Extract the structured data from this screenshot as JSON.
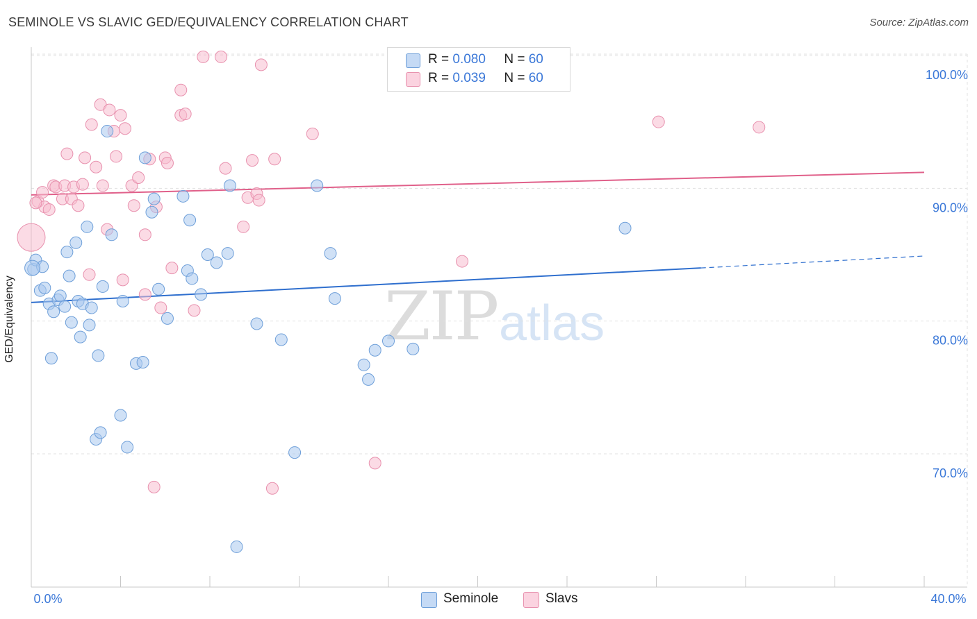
{
  "header": {
    "title": "SEMINOLE VS SLAVIC GED/EQUIVALENCY CORRELATION CHART",
    "source": "Source: ZipAtlas.com"
  },
  "watermark": {
    "zip": "ZIP",
    "atlas": "atlas"
  },
  "legend": {
    "rows": [
      {
        "r_label": "R =",
        "r_value": "0.080",
        "n_label": "N =",
        "n_value": "60"
      },
      {
        "r_label": "R =",
        "r_value": "0.039",
        "n_label": "N =",
        "n_value": "60"
      }
    ],
    "bottom": [
      {
        "label": "Seminole"
      },
      {
        "label": "Slavs"
      }
    ]
  },
  "colors": {
    "seminole_fill": "#a9c8ef",
    "seminole_stroke": "#6e9fd9",
    "seminole_line": "#2f6fce",
    "slavs_fill": "#f7bdd0",
    "slavs_stroke": "#e891ae",
    "slavs_line": "#e0608a",
    "axis_text": "#3b78d8",
    "grid": "#e0e0e0"
  },
  "chart_data": {
    "type": "scatter",
    "title": "SEMINOLE VS SLAVIC GED/EQUIVALENCY CORRELATION CHART",
    "xlabel": "",
    "ylabel": "GED/Equivalency",
    "xlim": [
      0,
      40
    ],
    "ylim": [
      60,
      101
    ],
    "x_tick_labels": [
      "0.0%",
      "40.0%"
    ],
    "y_ticks": [
      70,
      80,
      90,
      100
    ],
    "y_tick_labels": [
      "70.0%",
      "80.0%",
      "90.0%",
      "100.0%"
    ],
    "series": [
      {
        "name": "Seminole",
        "R": 0.08,
        "N": 60,
        "trend": {
          "x0": 0,
          "y0": 81.4,
          "x1": 30,
          "y1": 84.0,
          "dash_to": 40,
          "dash_y": 84.9
        },
        "points": [
          [
            0.1,
            83.9
          ],
          [
            0.2,
            84.6
          ],
          [
            0.4,
            82.3
          ],
          [
            0.5,
            84.1
          ],
          [
            0.6,
            82.5
          ],
          [
            0.8,
            81.3
          ],
          [
            0.9,
            77.2
          ],
          [
            1.0,
            80.7
          ],
          [
            1.2,
            81.6
          ],
          [
            1.3,
            81.9
          ],
          [
            1.5,
            81.1
          ],
          [
            1.6,
            85.2
          ],
          [
            1.7,
            83.4
          ],
          [
            1.8,
            79.9
          ],
          [
            2.0,
            85.9
          ],
          [
            2.1,
            81.5
          ],
          [
            2.2,
            78.8
          ],
          [
            2.3,
            81.3
          ],
          [
            2.5,
            87.1
          ],
          [
            2.6,
            79.7
          ],
          [
            2.7,
            81.0
          ],
          [
            2.9,
            71.1
          ],
          [
            3.0,
            77.4
          ],
          [
            3.1,
            71.6
          ],
          [
            3.2,
            82.6
          ],
          [
            3.4,
            94.3
          ],
          [
            3.6,
            86.5
          ],
          [
            4.0,
            72.9
          ],
          [
            4.1,
            81.5
          ],
          [
            4.3,
            70.5
          ],
          [
            4.7,
            76.8
          ],
          [
            5.0,
            76.9
          ],
          [
            5.1,
            92.3
          ],
          [
            5.4,
            88.2
          ],
          [
            5.5,
            89.2
          ],
          [
            5.7,
            82.4
          ],
          [
            6.1,
            80.2
          ],
          [
            6.8,
            89.4
          ],
          [
            7.0,
            83.8
          ],
          [
            7.1,
            87.6
          ],
          [
            7.2,
            83.2
          ],
          [
            7.6,
            82.0
          ],
          [
            7.9,
            85.0
          ],
          [
            8.3,
            84.4
          ],
          [
            8.8,
            85.1
          ],
          [
            8.9,
            90.2
          ],
          [
            9.2,
            63.0
          ],
          [
            10.1,
            79.8
          ],
          [
            11.2,
            78.6
          ],
          [
            11.8,
            70.1
          ],
          [
            12.8,
            90.2
          ],
          [
            13.4,
            85.1
          ],
          [
            13.6,
            81.7
          ],
          [
            14.9,
            76.7
          ],
          [
            15.1,
            75.6
          ],
          [
            15.4,
            77.8
          ],
          [
            16.0,
            78.5
          ],
          [
            17.1,
            77.9
          ],
          [
            26.6,
            87.0
          ],
          [
            0.05,
            84.0
          ]
        ]
      },
      {
        "name": "Slavs",
        "R": 0.039,
        "N": 60,
        "trend": {
          "x0": 0,
          "y0": 89.5,
          "x1": 40,
          "y1": 91.2
        },
        "points": [
          [
            0.0,
            86.3
          ],
          [
            0.3,
            89.0
          ],
          [
            0.5,
            89.7
          ],
          [
            0.6,
            88.6
          ],
          [
            0.8,
            88.4
          ],
          [
            1.0,
            90.2
          ],
          [
            1.1,
            90.1
          ],
          [
            1.4,
            89.2
          ],
          [
            1.5,
            90.2
          ],
          [
            1.6,
            92.6
          ],
          [
            1.8,
            89.2
          ],
          [
            1.9,
            90.1
          ],
          [
            2.1,
            88.7
          ],
          [
            2.3,
            90.3
          ],
          [
            2.4,
            92.3
          ],
          [
            2.6,
            83.5
          ],
          [
            2.7,
            94.8
          ],
          [
            2.9,
            91.6
          ],
          [
            3.1,
            96.3
          ],
          [
            3.2,
            90.2
          ],
          [
            3.4,
            86.9
          ],
          [
            3.5,
            95.9
          ],
          [
            3.7,
            94.3
          ],
          [
            3.8,
            92.4
          ],
          [
            4.0,
            95.5
          ],
          [
            4.1,
            83.1
          ],
          [
            4.2,
            94.5
          ],
          [
            4.5,
            90.2
          ],
          [
            4.6,
            88.7
          ],
          [
            4.8,
            90.8
          ],
          [
            5.1,
            86.5
          ],
          [
            5.1,
            82.0
          ],
          [
            5.3,
            92.2
          ],
          [
            5.5,
            67.5
          ],
          [
            5.6,
            88.6
          ],
          [
            5.8,
            81.0
          ],
          [
            6.0,
            92.3
          ],
          [
            6.1,
            91.9
          ],
          [
            6.3,
            84.0
          ],
          [
            6.7,
            97.4
          ],
          [
            6.7,
            95.5
          ],
          [
            6.9,
            95.6
          ],
          [
            7.3,
            80.8
          ],
          [
            7.7,
            99.9
          ],
          [
            8.5,
            99.9
          ],
          [
            8.7,
            91.5
          ],
          [
            9.5,
            87.1
          ],
          [
            9.7,
            89.3
          ],
          [
            9.9,
            92.1
          ],
          [
            10.1,
            89.6
          ],
          [
            10.2,
            89.1
          ],
          [
            10.3,
            99.3
          ],
          [
            10.8,
            67.4
          ],
          [
            10.9,
            92.2
          ],
          [
            12.6,
            94.1
          ],
          [
            19.3,
            84.5
          ],
          [
            15.4,
            69.3
          ],
          [
            28.1,
            95.0
          ],
          [
            32.6,
            94.6
          ],
          [
            0.2,
            88.9
          ]
        ]
      }
    ]
  }
}
